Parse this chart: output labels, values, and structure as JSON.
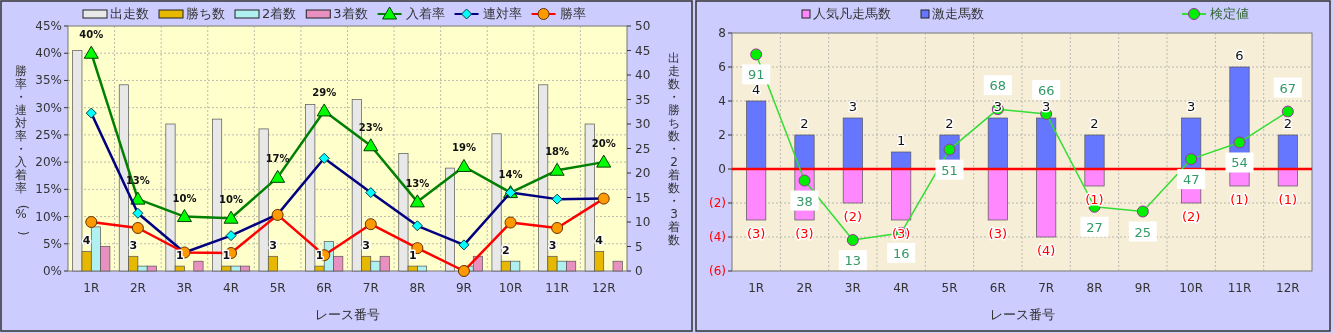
{
  "chart_data": [
    {
      "type": "bar",
      "categories": [
        "1R",
        "2R",
        "3R",
        "4R",
        "5R",
        "6R",
        "7R",
        "8R",
        "9R",
        "10R",
        "11R",
        "12R"
      ],
      "xlabel": "レース番号",
      "ylabel": "勝率・連対率・入着率(%)",
      "y2label": "出走数・勝ち数・2着数・3着数",
      "ylim": [
        0,
        45
      ],
      "yticks": [
        {
          "value": 0,
          "label": "0%"
        },
        {
          "value": 5,
          "label": "5%"
        },
        {
          "value": 10,
          "label": "10%"
        },
        {
          "value": 15,
          "label": "15%"
        },
        {
          "value": 20,
          "label": "20%"
        },
        {
          "value": 25,
          "label": "25%"
        },
        {
          "value": 30,
          "label": "30%"
        },
        {
          "value": 35,
          "label": "35%"
        },
        {
          "value": 40,
          "label": "40%"
        },
        {
          "value": 45,
          "label": "45%"
        }
      ],
      "y2lim": [
        0,
        50
      ],
      "y2ticks": [
        0,
        5,
        10,
        15,
        20,
        25,
        30,
        35,
        40,
        45,
        50
      ],
      "grid": true,
      "legend": "top",
      "series": [
        {
          "name": "出走数",
          "axis": "y2",
          "color": "#e8e8e8",
          "values": [
            45,
            38,
            30,
            31,
            29,
            34,
            35,
            24,
            21,
            28,
            38,
            30
          ]
        },
        {
          "name": "勝ち数",
          "axis": "y2",
          "color": "#e6b800",
          "values": [
            4,
            3,
            1,
            1,
            3,
            1,
            3,
            1,
            0,
            2,
            3,
            4
          ],
          "value_labels": [
            "4",
            "3",
            "1",
            "1",
            "3",
            "1",
            "3",
            "1",
            null,
            "2",
            "3",
            "4"
          ]
        },
        {
          "name": "2着数",
          "axis": "y2",
          "color": "#b0f0f0",
          "values": [
            9,
            1,
            0,
            1,
            0,
            6,
            2,
            1,
            1,
            2,
            2,
            0
          ]
        },
        {
          "name": "3着数",
          "axis": "y2",
          "color": "#e890c0",
          "values": [
            5,
            1,
            2,
            1,
            0,
            3,
            3,
            0,
            3,
            0,
            2,
            2
          ]
        },
        {
          "name": "入着率",
          "type": "line",
          "color": "#008000",
          "marker": "triangle",
          "values": [
            40,
            13.2,
            10,
            9.7,
            17.2,
            29.4,
            23,
            12.7,
            19.2,
            14.4,
            18.5,
            20
          ],
          "value_labels": [
            "40%",
            "13%",
            "10%",
            "10%",
            "17%",
            "29%",
            "23%",
            "13%",
            "19%",
            "14%",
            "18%",
            "20%"
          ]
        },
        {
          "name": "連対率",
          "type": "line",
          "color": "#000080",
          "marker": "diamond",
          "values": [
            29,
            10.6,
            3.4,
            6.5,
            10.4,
            20.7,
            14.4,
            8.3,
            4.8,
            14.4,
            13.2,
            13.3
          ]
        },
        {
          "name": "勝率",
          "type": "line",
          "color": "#ff0000",
          "marker": "circle",
          "values": [
            9,
            7.9,
            3.4,
            3.3,
            10.3,
            2.9,
            8.6,
            4.2,
            0,
            8.9,
            7.9,
            13.3
          ]
        }
      ]
    },
    {
      "type": "bar",
      "stacked": true,
      "categories": [
        "1R",
        "2R",
        "3R",
        "4R",
        "5R",
        "6R",
        "7R",
        "8R",
        "9R",
        "10R",
        "11R",
        "12R"
      ],
      "xlabel": "レース番号",
      "ylim": [
        -6,
        8
      ],
      "yticks": [
        {
          "value": -6,
          "label": "(6)"
        },
        {
          "value": -4,
          "label": "(4)"
        },
        {
          "value": -2,
          "label": "(2)"
        },
        0,
        2,
        4,
        6,
        8
      ],
      "y2lim": [
        0,
        100
      ],
      "grid": true,
      "legend": "top",
      "ref_lines": [
        {
          "axis": "y",
          "value": 0,
          "color": "#ff0000"
        }
      ],
      "series": [
        {
          "name": "人気凡走馬数",
          "color": "#ff88ff",
          "values": [
            -3,
            -3,
            -2,
            -3,
            0,
            -3,
            -4,
            -1,
            0,
            -2,
            -1,
            -1
          ],
          "value_labels": [
            "(3)",
            "(3)",
            "(2)",
            "(3)",
            null,
            "(3)",
            "(4)",
            "(1)",
            null,
            "(2)",
            "(1)",
            "(1)"
          ]
        },
        {
          "name": "激走馬数",
          "color": "#6677ff",
          "values": [
            4,
            2,
            3,
            1,
            2,
            3,
            3,
            2,
            0,
            3,
            6,
            2
          ],
          "value_labels": [
            "4",
            "2",
            "3",
            "1",
            "2",
            "3",
            "3",
            "2",
            null,
            "3",
            "6",
            "2"
          ]
        },
        {
          "name": "検定値",
          "type": "line",
          "axis": "y2",
          "color": "#33dd33",
          "marker": "circle",
          "values": [
            91,
            38,
            13,
            16,
            51,
            68,
            66,
            27,
            25,
            47,
            54,
            67
          ],
          "value_labels": [
            "91",
            "38",
            "13",
            "16",
            "51",
            "68",
            "66",
            "27",
            "25",
            "47",
            "54",
            "67"
          ]
        }
      ]
    }
  ]
}
